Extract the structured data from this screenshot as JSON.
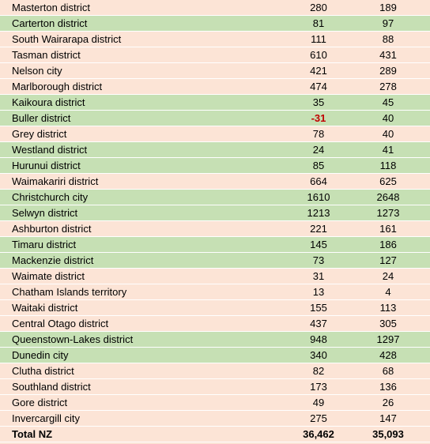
{
  "table": {
    "fills": {
      "plain": "#fce4d6",
      "highlight": "#c6e0b4"
    },
    "rows": [
      {
        "name": "Masterton district",
        "values": [
          280,
          189
        ],
        "fill": "plain"
      },
      {
        "name": "Carterton district",
        "values": [
          81,
          97
        ],
        "fill": "highlight"
      },
      {
        "name": "South Wairarapa district",
        "values": [
          111,
          88
        ],
        "fill": "plain"
      },
      {
        "name": "Tasman district",
        "values": [
          610,
          431
        ],
        "fill": "plain"
      },
      {
        "name": "Nelson city",
        "values": [
          421,
          289
        ],
        "fill": "plain"
      },
      {
        "name": "Marlborough district",
        "values": [
          474,
          278
        ],
        "fill": "plain"
      },
      {
        "name": "Kaikoura district",
        "values": [
          35,
          45
        ],
        "fill": "highlight"
      },
      {
        "name": "Buller district",
        "values": [
          -31,
          40
        ],
        "fill": "highlight"
      },
      {
        "name": "Grey district",
        "values": [
          78,
          40
        ],
        "fill": "plain"
      },
      {
        "name": "Westland district",
        "values": [
          24,
          41
        ],
        "fill": "highlight"
      },
      {
        "name": "Hurunui district",
        "values": [
          85,
          118
        ],
        "fill": "highlight"
      },
      {
        "name": "Waimakariri district",
        "values": [
          664,
          625
        ],
        "fill": "plain"
      },
      {
        "name": "Christchurch city",
        "values": [
          1610,
          2648
        ],
        "fill": "highlight"
      },
      {
        "name": "Selwyn district",
        "values": [
          1213,
          1273
        ],
        "fill": "highlight"
      },
      {
        "name": "Ashburton district",
        "values": [
          221,
          161
        ],
        "fill": "plain"
      },
      {
        "name": "Timaru district",
        "values": [
          145,
          186
        ],
        "fill": "highlight"
      },
      {
        "name": "Mackenzie district",
        "values": [
          73,
          127
        ],
        "fill": "highlight"
      },
      {
        "name": "Waimate district",
        "values": [
          31,
          24
        ],
        "fill": "plain"
      },
      {
        "name": "Chatham Islands territory",
        "values": [
          13,
          4
        ],
        "fill": "plain"
      },
      {
        "name": "Waitaki district",
        "values": [
          155,
          113
        ],
        "fill": "plain"
      },
      {
        "name": "Central Otago district",
        "values": [
          437,
          305
        ],
        "fill": "plain"
      },
      {
        "name": "Queenstown-Lakes district",
        "values": [
          948,
          1297
        ],
        "fill": "highlight"
      },
      {
        "name": "Dunedin city",
        "values": [
          340,
          428
        ],
        "fill": "highlight"
      },
      {
        "name": "Clutha district",
        "values": [
          82,
          68
        ],
        "fill": "plain"
      },
      {
        "name": "Southland district",
        "values": [
          173,
          136
        ],
        "fill": "plain"
      },
      {
        "name": "Gore district",
        "values": [
          49,
          26
        ],
        "fill": "plain"
      },
      {
        "name": "Invercargill city",
        "values": [
          275,
          147
        ],
        "fill": "plain"
      }
    ],
    "total": {
      "name": "Total NZ",
      "values": [
        "36,462",
        "35,093"
      ],
      "fill": "plain"
    }
  }
}
